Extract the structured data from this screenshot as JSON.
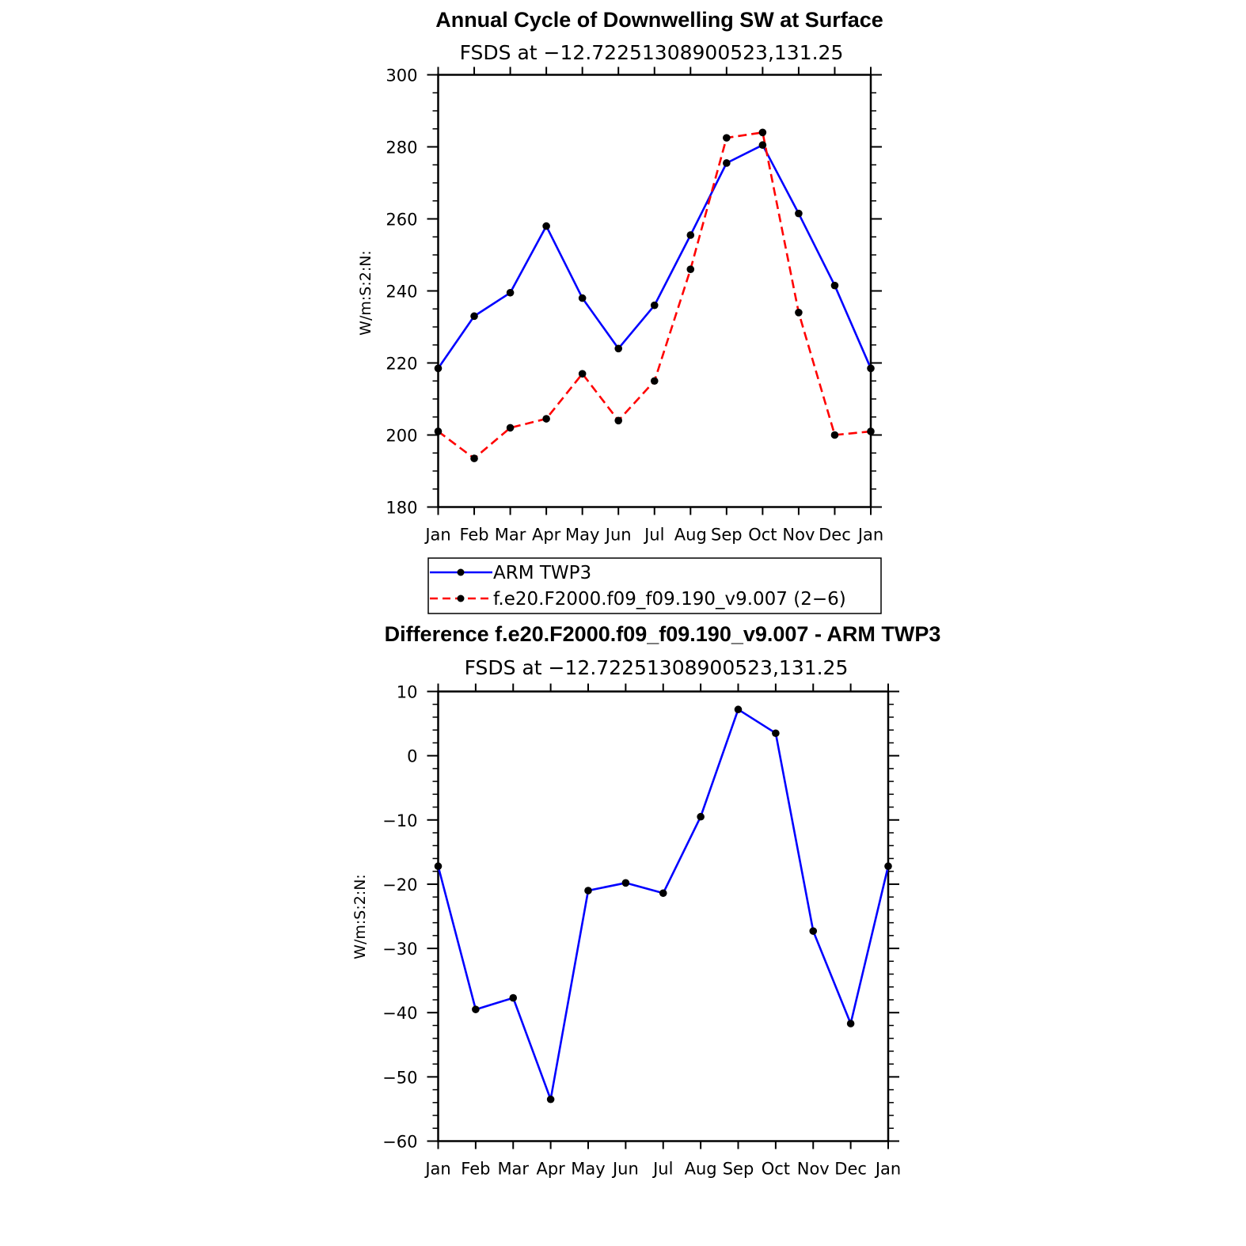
{
  "chart_data": [
    {
      "type": "line",
      "title": "Annual Cycle of Downwelling SW at Surface",
      "subtitle": "FSDS at −12.72251308900523,131.25",
      "ylabel": "W/m:S:2:N:",
      "xlabel": "",
      "categories": [
        "Jan",
        "Feb",
        "Mar",
        "Apr",
        "May",
        "Jun",
        "Jul",
        "Aug",
        "Sep",
        "Oct",
        "Nov",
        "Dec",
        "Jan"
      ],
      "ylim": [
        180,
        300
      ],
      "yticks": [
        180,
        200,
        220,
        240,
        260,
        280,
        300
      ],
      "yticks_text": [
        "180",
        "200",
        "220",
        "240",
        "260",
        "280",
        "300"
      ],
      "series": [
        {
          "name": "ARM TWP3",
          "color": "#0000ff",
          "dash": "solid",
          "values": [
            218.5,
            233,
            239.5,
            258,
            238,
            224,
            236,
            255.5,
            275.5,
            280.5,
            261.5,
            241.5,
            218.5
          ]
        },
        {
          "name": "f.e20.F2000.f09_f09.190_v9.007 (2−6)",
          "color": "#ff0000",
          "dash": "dashed",
          "values": [
            201,
            193.5,
            202,
            204.5,
            217,
            204,
            215,
            246,
            282.5,
            284,
            234,
            200,
            201
          ]
        }
      ],
      "legend": {
        "placement": "bottom"
      }
    },
    {
      "type": "line",
      "title": "Difference f.e20.F2000.f09_f09.190_v9.007 - ARM TWP3",
      "subtitle": "FSDS at −12.72251308900523,131.25",
      "ylabel": "W/m:S:2:N:",
      "xlabel": "",
      "categories": [
        "Jan",
        "Feb",
        "Mar",
        "Apr",
        "May",
        "Jun",
        "Jul",
        "Aug",
        "Sep",
        "Oct",
        "Nov",
        "Dec",
        "Jan"
      ],
      "ylim": [
        -60,
        10
      ],
      "yticks": [
        -60,
        -50,
        -40,
        -30,
        -20,
        -10,
        0,
        10
      ],
      "yticks_text": [
        "−60",
        "−50",
        "−40",
        "−30",
        "−20",
        "−10",
        "0",
        "10"
      ],
      "series": [
        {
          "name": "Difference",
          "color": "#0000ff",
          "dash": "solid",
          "values": [
            -17.2,
            -39.5,
            -37.7,
            -53.5,
            -21,
            -19.8,
            -21.4,
            -9.5,
            7.2,
            3.5,
            -27.3,
            -41.7,
            -17.2
          ]
        }
      ]
    }
  ]
}
